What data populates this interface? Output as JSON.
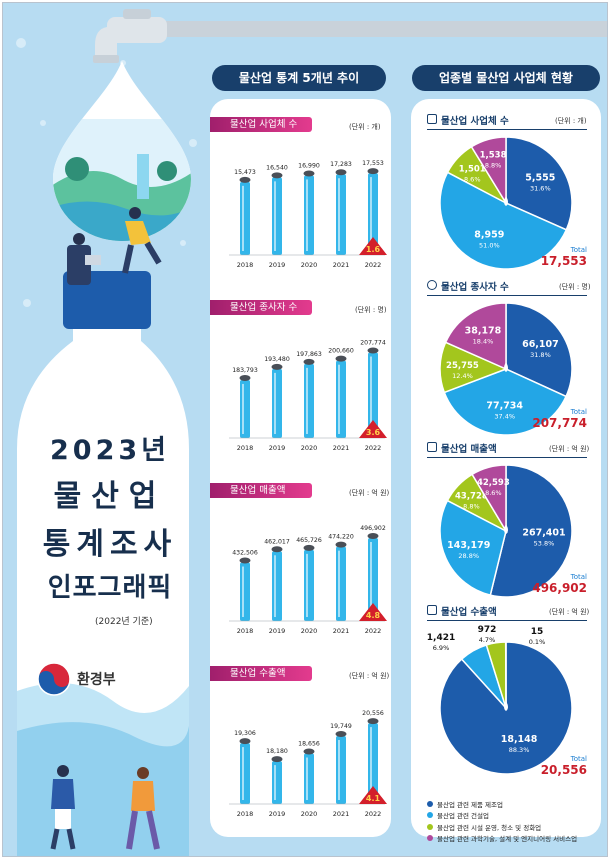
{
  "main_title": {
    "line1": "2023년",
    "line2": "물산업",
    "line3": "통계조사",
    "line4": "인포그래픽"
  },
  "base_year": "(2022년 기준)",
  "ministry": "환경부",
  "left_header": "물산업 통계 5개년 추이",
  "right_header": "업종별 물산업 사업체 현황",
  "colors": {
    "navy": "#183f6b",
    "pink": "#c2267a",
    "bar": "#33b6ea",
    "red": "#d31f2b",
    "pie_dark": "#1d5cab",
    "pie_mid": "#23a6e6",
    "pie_green": "#a3c61d",
    "pie_purple": "#b0499b"
  },
  "chart_data": [
    {
      "type": "bar",
      "title": "물산업 사업체 수",
      "unit": "(단위 : 개)",
      "categories": [
        "2018",
        "2019",
        "2020",
        "2021",
        "2022"
      ],
      "values": [
        15473,
        16540,
        16990,
        17283,
        17553
      ],
      "labels": [
        "15,473",
        "16,540",
        "16,990",
        "17,283",
        "17,553"
      ],
      "growth": "1.6",
      "ylim": [
        0,
        19000
      ]
    },
    {
      "type": "bar",
      "title": "물산업 종사자 수",
      "unit": "(단위 : 명)",
      "categories": [
        "2018",
        "2019",
        "2020",
        "2021",
        "2022"
      ],
      "values": [
        183793,
        193480,
        197863,
        200660,
        207774
      ],
      "labels": [
        "183,793",
        "193,480",
        "197,863",
        "200,660",
        "207,774"
      ],
      "growth": "3.6",
      "ylim": [
        140000,
        210000
      ]
    },
    {
      "type": "bar",
      "title": "물산업 매출액",
      "unit": "(단위 : 억 원)",
      "categories": [
        "2018",
        "2019",
        "2020",
        "2021",
        "2022"
      ],
      "values": [
        432506,
        462017,
        465726,
        474220,
        496902
      ],
      "labels": [
        "432,506",
        "462,017",
        "465,726",
        "474,220",
        "496,902"
      ],
      "growth": "4.8",
      "ylim": [
        300000,
        510000
      ]
    },
    {
      "type": "bar",
      "title": "물산업 수출액",
      "unit": "(단위 : 억 원)",
      "categories": [
        "2018",
        "2019",
        "2020",
        "2021",
        "2022"
      ],
      "values": [
        19306,
        18180,
        18656,
        19749,
        20556
      ],
      "labels": [
        "19,306",
        "18,180",
        "18,656",
        "19,749",
        "20,556"
      ],
      "growth": "4.1",
      "ylim": [
        16000,
        21000
      ]
    },
    {
      "type": "pie",
      "title": "물산업 사업체 수",
      "unit": "(단위 : 개)",
      "slices": [
        {
          "category": "물산업 관련 제품 제조업",
          "value": 5555,
          "label": "5,555",
          "pct": "31.6%"
        },
        {
          "category": "물산업 관련 건설업",
          "value": 8959,
          "label": "8,959",
          "pct": "51.0%"
        },
        {
          "category": "물산업 관련 시설 운영, 청소 및 정화업",
          "value": 1501,
          "label": "1,501",
          "pct": "8.6%"
        },
        {
          "category": "물산업 관련 과학기술, 설계 및 엔지니어링 서비스업",
          "value": 1538,
          "label": "1,538",
          "pct": "8.8%"
        }
      ],
      "total_label": "Total",
      "total": "17,553"
    },
    {
      "type": "pie",
      "title": "물산업 종사자 수",
      "unit": "(단위 : 명)",
      "slices": [
        {
          "category": "물산업 관련 제품 제조업",
          "value": 66107,
          "label": "66,107",
          "pct": "31.8%"
        },
        {
          "category": "물산업 관련 건설업",
          "value": 77734,
          "label": "77,734",
          "pct": "37.4%"
        },
        {
          "category": "물산업 관련 시설 운영, 청소 및 정화업",
          "value": 25755,
          "label": "25,755",
          "pct": "12.4%"
        },
        {
          "category": "물산업 관련 과학기술, 설계 및 엔지니어링 서비스업",
          "value": 38178,
          "label": "38,178",
          "pct": "18.4%"
        }
      ],
      "total_label": "Total",
      "total": "207,774"
    },
    {
      "type": "pie",
      "title": "물산업 매출액",
      "unit": "(단위 : 억 원)",
      "slices": [
        {
          "category": "물산업 관련 제품 제조업",
          "value": 267401,
          "label": "267,401",
          "pct": "53.8%"
        },
        {
          "category": "물산업 관련 건설업",
          "value": 143179,
          "label": "143,179",
          "pct": "28.8%"
        },
        {
          "category": "물산업 관련 시설 운영, 청소 및 정화업",
          "value": 43728,
          "label": "43,728",
          "pct": "8.8%"
        },
        {
          "category": "물산업 관련 과학기술, 설계 및 엔지니어링 서비스업",
          "value": 42593,
          "label": "42,593",
          "pct": "8.6%"
        }
      ],
      "total_label": "Total",
      "total": "496,902"
    },
    {
      "type": "pie",
      "title": "물산업 수출액",
      "unit": "(단위 : 억 원)",
      "slices": [
        {
          "category": "물산업 관련 제품 제조업",
          "value": 18148,
          "label": "18,148",
          "pct": "88.3%"
        },
        {
          "category": "물산업 관련 건설업",
          "value": 1421,
          "label": "1,421",
          "pct": "6.9%"
        },
        {
          "category": "물산업 관련 시설 운영, 청소 및 정화업",
          "value": 972,
          "label": "972",
          "pct": "4.7%"
        },
        {
          "category": "물산업 관련 과학기술, 설계 및 엔지니어링 서비스업",
          "value": 15,
          "label": "15",
          "pct": "0.1%"
        }
      ],
      "total_label": "Total",
      "total": "20,556"
    }
  ],
  "legend": [
    "물산업 관련 제품 제조업",
    "물산업 관련 건설업",
    "물산업 관련 시설 운영, 청소 및 정화업",
    "물산업 관련 과학기술, 설계 및 엔지니어링 서비스업"
  ]
}
